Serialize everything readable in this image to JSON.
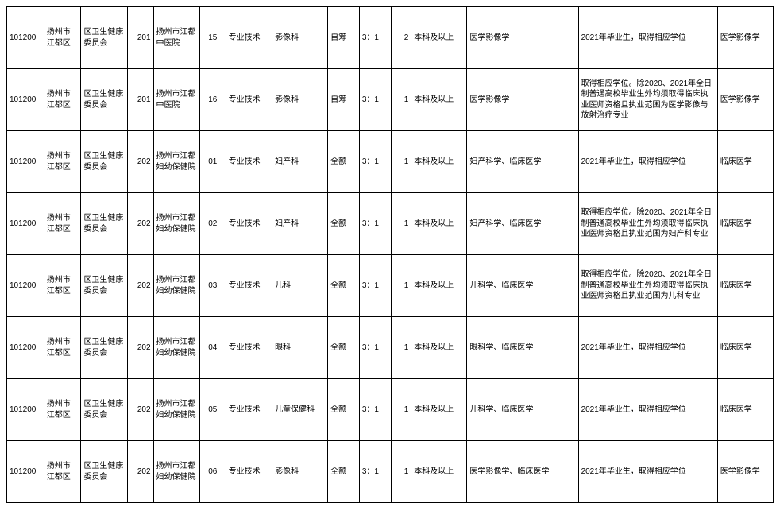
{
  "table": {
    "column_classes": [
      "c0",
      "c1",
      "c2",
      "c3",
      "c4",
      "c5",
      "c6",
      "c7",
      "c8",
      "c9",
      "c10",
      "c11",
      "c12",
      "c13",
      "c14"
    ],
    "rows": [
      [
        "101200",
        "扬州市江都区",
        "区卫生健康委员会",
        "201",
        "扬州市江都中医院",
        "15",
        "专业技术",
        "影像科",
        "自筹",
        "3：1",
        "2",
        "本科及以上",
        "医学影像学",
        "2021年毕业生，取得相应学位",
        "医学影像学"
      ],
      [
        "101200",
        "扬州市江都区",
        "区卫生健康委员会",
        "201",
        "扬州市江都中医院",
        "16",
        "专业技术",
        "影像科",
        "自筹",
        "3：1",
        "1",
        "本科及以上",
        "医学影像学",
        "取得相应学位。除2020、2021年全日制普通高校毕业生外均须取得临床执业医师资格且执业范围为医学影像与放射治疗专业",
        "医学影像学"
      ],
      [
        "101200",
        "扬州市江都区",
        "区卫生健康委员会",
        "202",
        "扬州市江都妇幼保健院",
        "01",
        "专业技术",
        "妇产科",
        "全额",
        "3：1",
        "1",
        "本科及以上",
        "妇产科学、临床医学",
        "2021年毕业生，取得相应学位",
        "临床医学"
      ],
      [
        "101200",
        "扬州市江都区",
        "区卫生健康委员会",
        "202",
        "扬州市江都妇幼保健院",
        "02",
        "专业技术",
        "妇产科",
        "全额",
        "3：1",
        "1",
        "本科及以上",
        "妇产科学、临床医学",
        "取得相应学位。除2020、2021年全日制普通高校毕业生外均须取得临床执业医师资格且执业范围为妇产科专业",
        "临床医学"
      ],
      [
        "101200",
        "扬州市江都区",
        "区卫生健康委员会",
        "202",
        "扬州市江都妇幼保健院",
        "03",
        "专业技术",
        "儿科",
        "全额",
        "3：1",
        "1",
        "本科及以上",
        "儿科学、临床医学",
        "取得相应学位。除2020、2021年全日制普通高校毕业生外均须取得临床执业医师资格且执业范围为儿科专业",
        "临床医学"
      ],
      [
        "101200",
        "扬州市江都区",
        "区卫生健康委员会",
        "202",
        "扬州市江都妇幼保健院",
        "04",
        "专业技术",
        "眼科",
        "全额",
        "3：1",
        "1",
        "本科及以上",
        "眼科学、临床医学",
        "2021年毕业生，取得相应学位",
        "临床医学"
      ],
      [
        "101200",
        "扬州市江都区",
        "区卫生健康委员会",
        "202",
        "扬州市江都妇幼保健院",
        "05",
        "专业技术",
        "儿童保健科",
        "全额",
        "3：1",
        "1",
        "本科及以上",
        "儿科学、临床医学",
        "2021年毕业生，取得相应学位",
        "临床医学"
      ],
      [
        "101200",
        "扬州市江都区",
        "区卫生健康委员会",
        "202",
        "扬州市江都妇幼保健院",
        "06",
        "专业技术",
        "影像科",
        "全额",
        "3：1",
        "1",
        "本科及以上",
        "医学影像学、临床医学",
        "2021年毕业生，取得相应学位",
        "医学影像学"
      ]
    ]
  }
}
